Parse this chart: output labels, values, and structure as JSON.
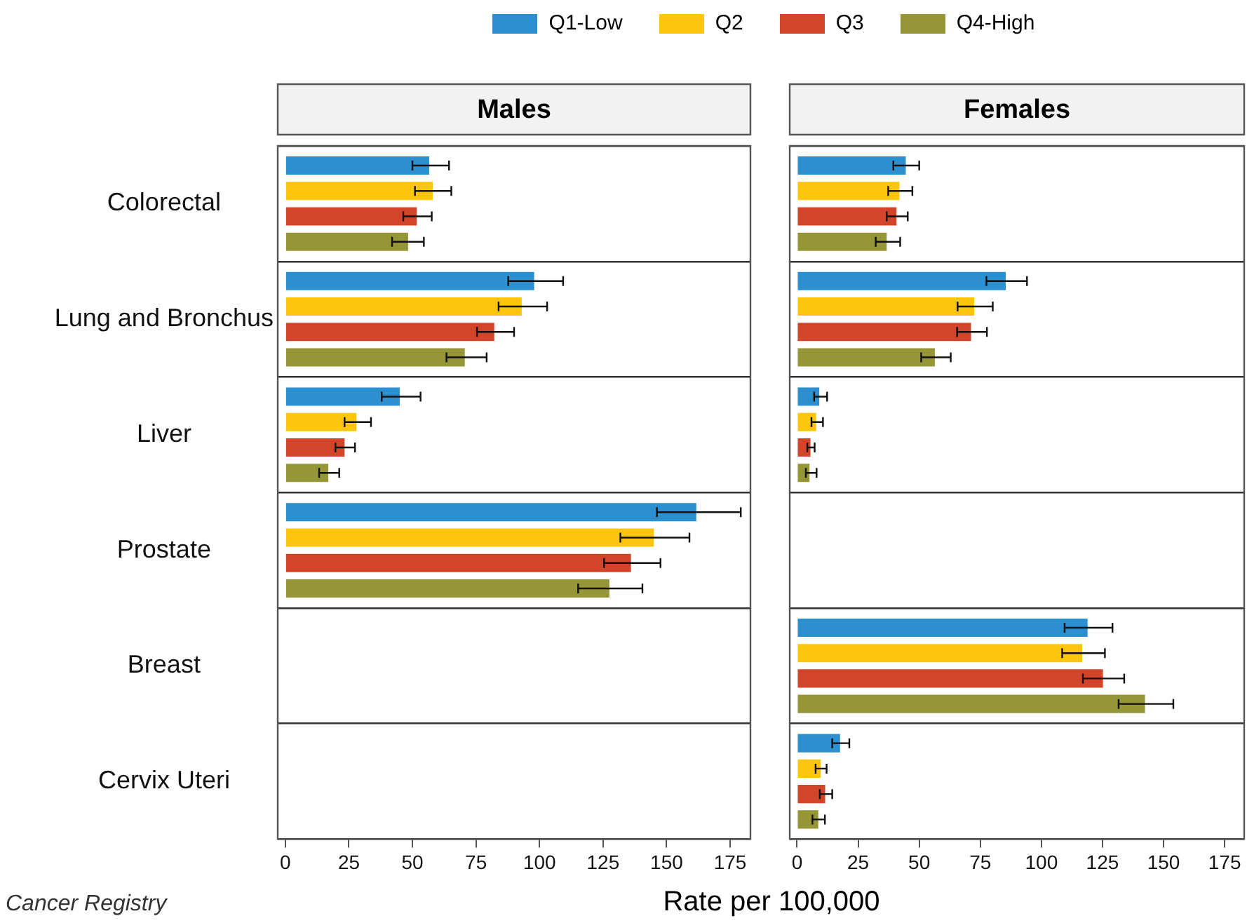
{
  "chart_data": [
    {
      "type": "bar",
      "orientation": "horizontal",
      "title": "Males",
      "xlabel": "Rate per 100,000",
      "annotations": [
        "Cancer Registry"
      ],
      "legend": "top",
      "grid": "y",
      "xlim": [
        -3,
        183
      ],
      "xticks": [
        0,
        25,
        50,
        75,
        100,
        125,
        150,
        175
      ],
      "categories": [
        "Colorectal",
        "Lung and Bronchus",
        "Liver",
        "Prostate",
        "Breast",
        "Cervix Uteri"
      ],
      "series": [
        {
          "name": "Q1-Low",
          "color": "#2b8fd0",
          "values": [
            56.6,
            97.9,
            45,
            161.7,
            null,
            null
          ],
          "errors": [
            [
              50,
              64.4
            ],
            [
              87.7,
              109.3
            ],
            [
              37.9,
              53.2
            ],
            [
              146.2,
              179.2
            ],
            null,
            null
          ]
        },
        {
          "name": "Q2",
          "color": "#fdc60d",
          "values": [
            58,
            93,
            28,
            145,
            null,
            null
          ],
          "errors": [
            [
              51,
              65.3
            ],
            [
              83.9,
              103
            ],
            [
              23.3,
              33.7
            ],
            [
              131.8,
              159
            ],
            null,
            null
          ]
        },
        {
          "name": "Q3",
          "color": "#d2452a",
          "values": [
            51.7,
            82.2,
            23.3,
            136,
            null,
            null
          ],
          "errors": [
            [
              46.4,
              57.6
            ],
            [
              75.4,
              90
            ],
            [
              19.7,
              27.4
            ],
            [
              125.4,
              147.6
            ],
            null,
            null
          ]
        },
        {
          "name": "Q4-High",
          "color": "#959637",
          "values": [
            48.3,
            70.6,
            16.9,
            127.5,
            null,
            null
          ],
          "errors": [
            [
              42,
              54.5
            ],
            [
              63.4,
              79.2
            ],
            [
              13.3,
              21.2
            ],
            [
              115.2,
              140.5
            ],
            null,
            null
          ]
        }
      ]
    },
    {
      "type": "bar",
      "orientation": "horizontal",
      "title": "Females",
      "grid": "y",
      "tick_labels": "x",
      "xlim": [
        -3,
        183
      ],
      "xticks": [
        0,
        25,
        50,
        75,
        100,
        125,
        150,
        175
      ],
      "categories": [
        null,
        null,
        null,
        null,
        null,
        null
      ],
      "series": [
        {
          "color": "#2b8fd0",
          "values": [
            44.5,
            85.4,
            9.1,
            null,
            118.9,
            17.6
          ],
          "errors": [
            [
              39.4,
              50
            ],
            [
              77.5,
              94.1
            ],
            [
              7,
              12.3
            ],
            null,
            [
              109.5,
              129.1
            ],
            [
              14.4,
              21.4
            ]
          ]
        },
        {
          "color": "#fdc60d",
          "values": [
            41.9,
            72.5,
            7.8,
            null,
            116.7,
            9.7
          ],
          "errors": [
            [
              37.3,
              47.2
            ],
            [
              65.7,
              80.1
            ],
            [
              5.9,
              10.6
            ],
            null,
            [
              108.5,
              126
            ],
            [
              7.6,
              12.1
            ]
          ]
        },
        {
          "color": "#d2452a",
          "values": [
            40.7,
            71.2,
            5.5,
            null,
            125.2,
            11.5
          ],
          "errors": [
            [
              36.7,
              45.3
            ],
            [
              65.5,
              77.7
            ],
            [
              4.2,
              7.2
            ],
            null,
            [
              117,
              133.9
            ],
            [
              9.3,
              14.4
            ]
          ]
        },
        {
          "color": "#959637",
          "values": [
            36.7,
            56.4,
            5.1,
            null,
            142.4,
            8.7
          ],
          "errors": [
            [
              32.2,
              42.2
            ],
            [
              50.8,
              62.9
            ],
            [
              3.6,
              8
            ],
            null,
            [
              131.6,
              154
            ],
            [
              6.3,
              11.4
            ]
          ]
        }
      ]
    }
  ]
}
